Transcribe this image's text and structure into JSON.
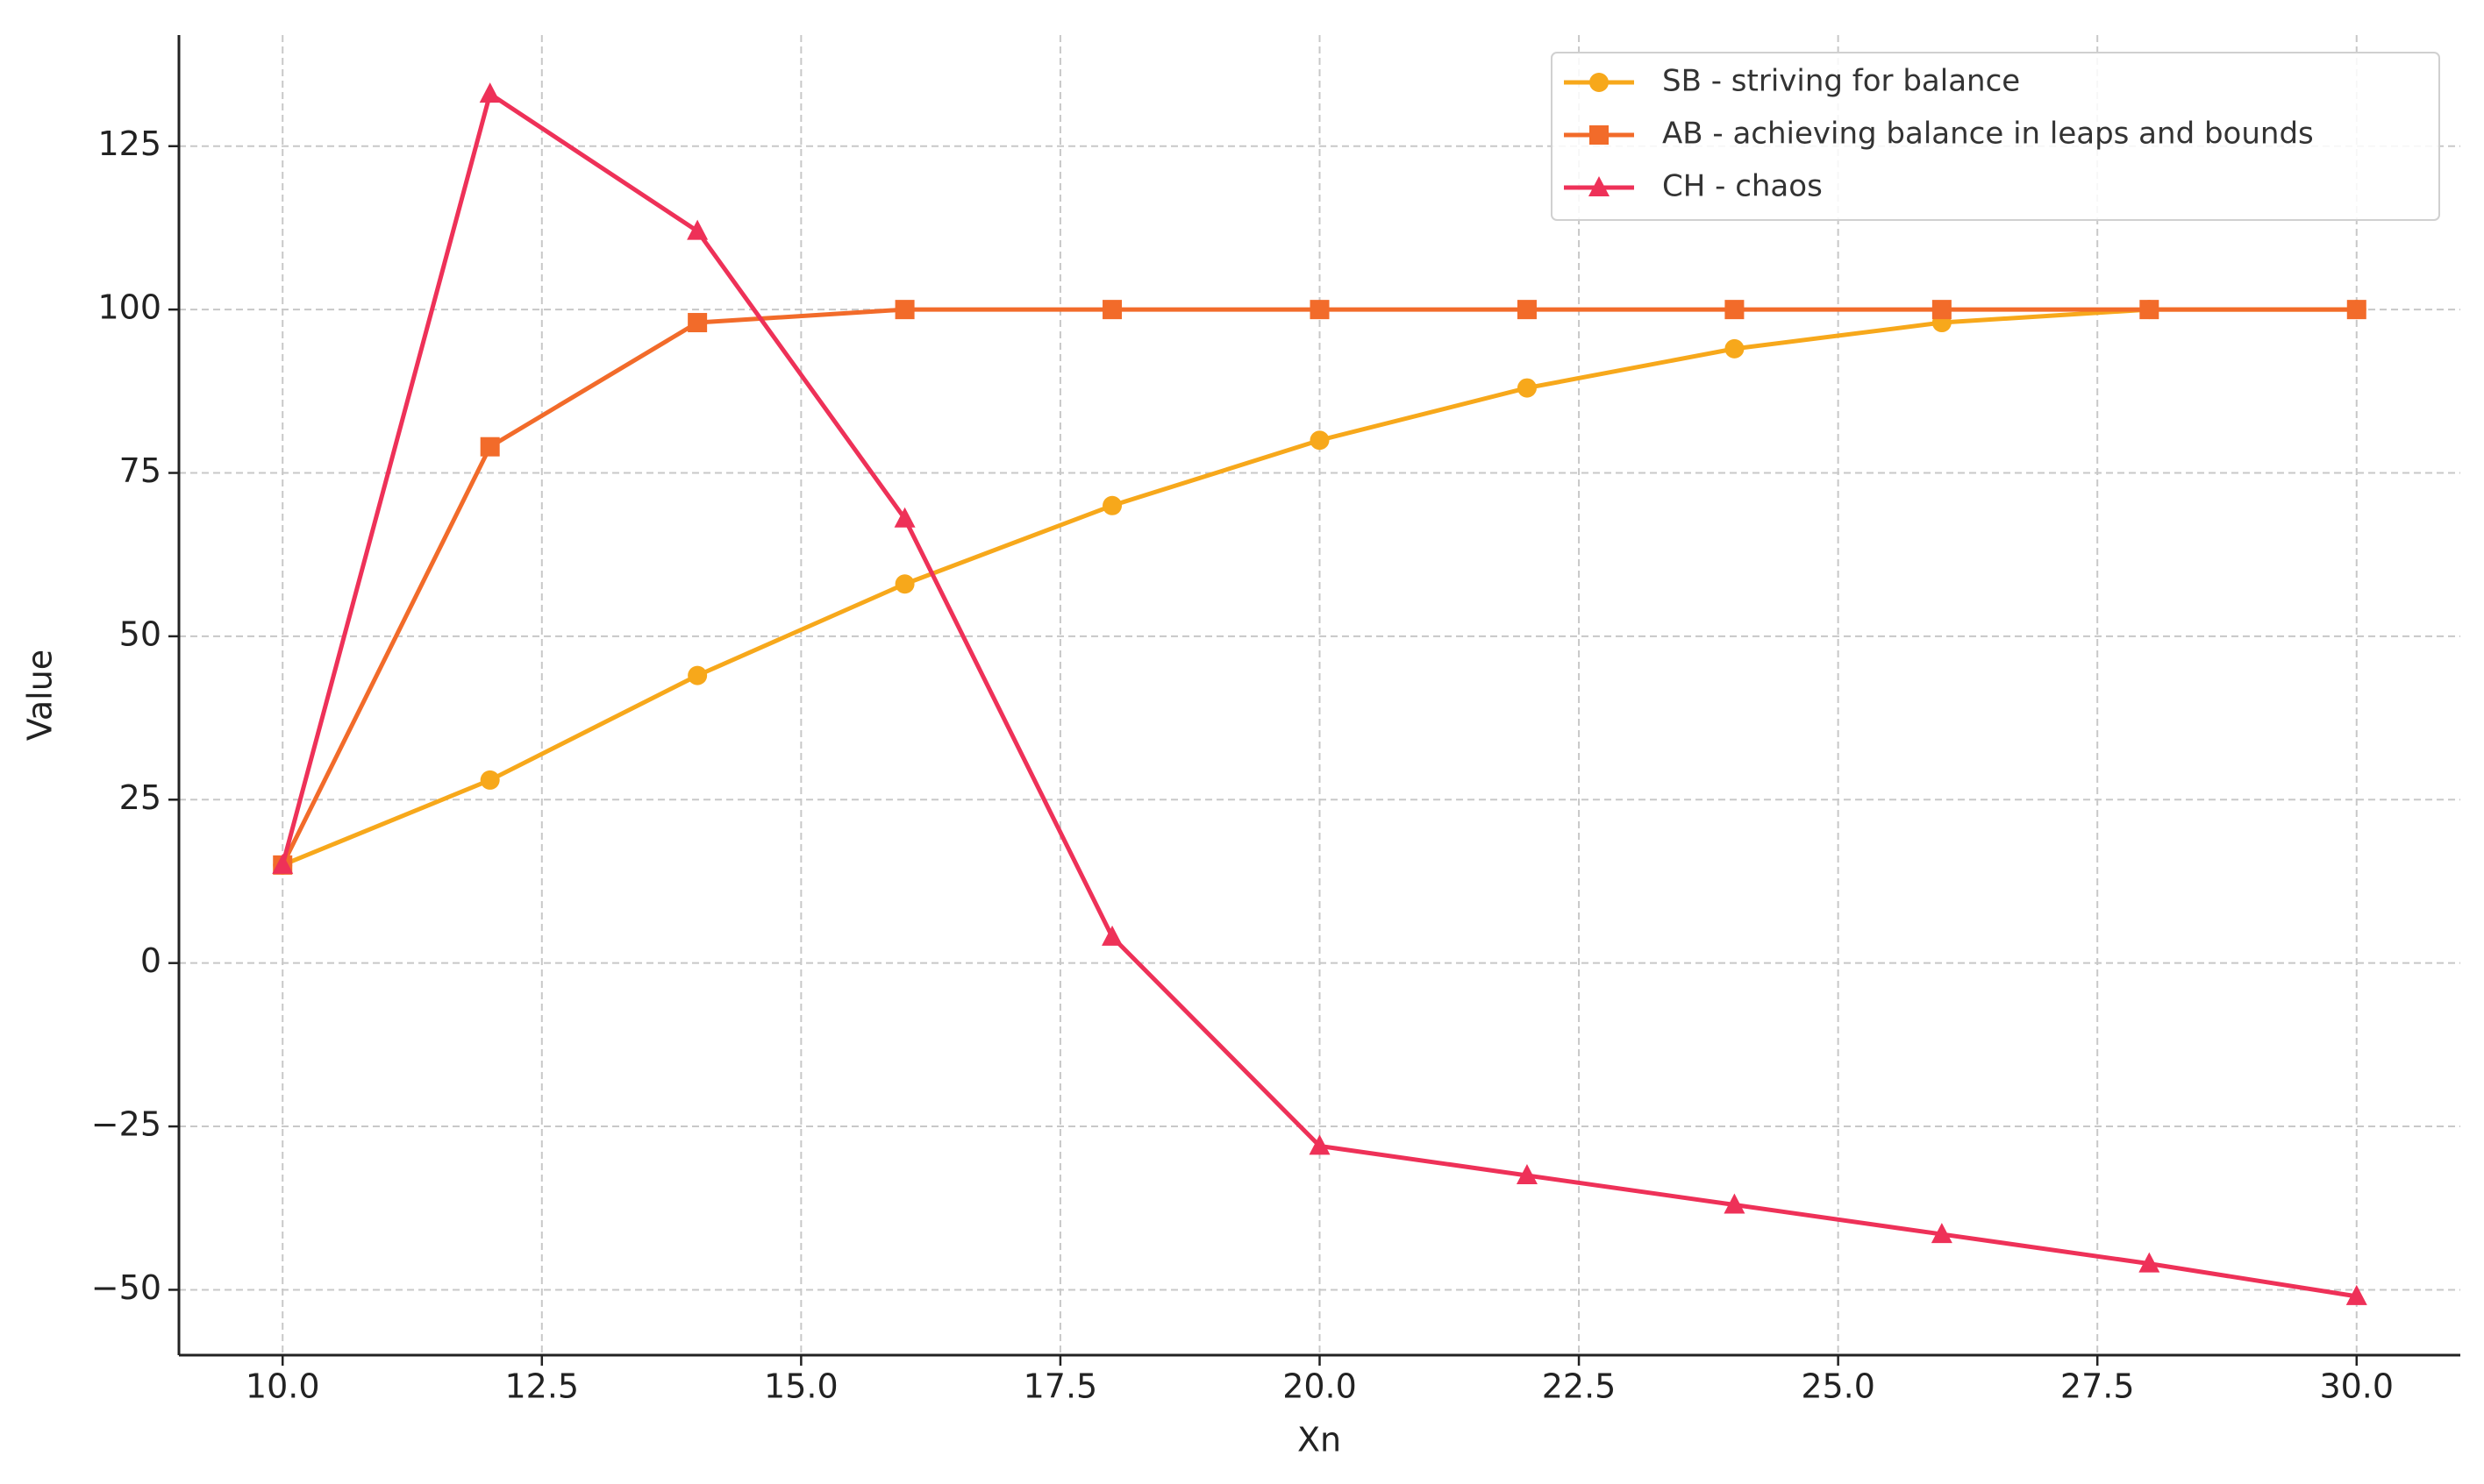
{
  "chart_data": {
    "type": "line",
    "x_label": "Xn",
    "y_label": "Value",
    "x": [
      10,
      12,
      14,
      16,
      18,
      20,
      22,
      24,
      26,
      28,
      30
    ],
    "series": [
      {
        "name": "SB - striving for balance",
        "color": "#f7a81b",
        "marker": "o",
        "values": [
          15,
          28,
          44,
          58,
          70,
          80,
          88,
          94,
          98,
          100,
          100
        ]
      },
      {
        "name": "AB - achieving balance in leaps and bounds",
        "color": "#f26b2a",
        "marker": "s",
        "values": [
          15,
          79,
          98,
          100,
          100,
          100,
          100,
          100,
          100,
          100,
          100
        ]
      },
      {
        "name": "CH - chaos",
        "color": "#ee3158",
        "marker": "^",
        "values": [
          15,
          133,
          112,
          68,
          4,
          -28,
          -32.5,
          -37,
          -41.5,
          -46,
          -51
        ]
      }
    ],
    "xlim": [
      9,
      31
    ],
    "xticks": [
      {
        "value": 10,
        "label": "10.0"
      },
      12.5,
      {
        "value": 15,
        "label": "15.0"
      },
      17.5,
      {
        "value": 20,
        "label": "20.0"
      },
      22.5,
      {
        "value": 25,
        "label": "25.0"
      },
      27.5,
      {
        "value": 30,
        "label": "30.0"
      }
    ],
    "ylim": [
      -60,
      142
    ],
    "yticks": [
      {
        "value": -50,
        "label": "−50"
      },
      {
        "value": -25,
        "label": "−25"
      },
      0,
      25,
      50,
      75,
      100,
      125
    ],
    "grid": true,
    "legend": "upper right"
  }
}
